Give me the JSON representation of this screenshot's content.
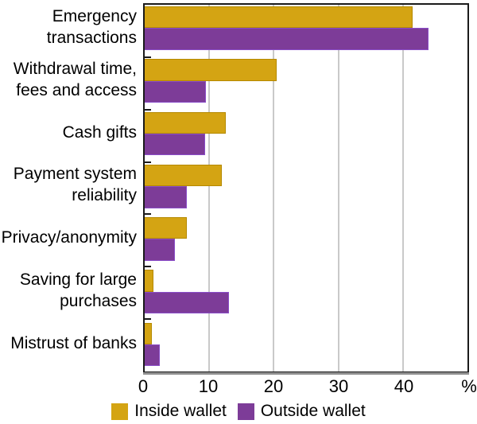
{
  "chart_data": {
    "type": "bar",
    "orientation": "horizontal",
    "title": "",
    "categories": [
      "Emergency\ntransactions",
      "Withdrawal time,\nfees and access",
      "Cash gifts",
      "Payment system\nreliability",
      "Privacy/anonymity",
      "Saving for large\npurchases",
      "Mistrust of banks"
    ],
    "series": [
      {
        "name": "Inside wallet",
        "color": "#d4a413",
        "values": [
          41.5,
          20.5,
          12.5,
          12.0,
          6.5,
          1.3,
          1.1
        ]
      },
      {
        "name": "Outside wallet",
        "color": "#7d3c98",
        "values": [
          44.0,
          9.5,
          9.3,
          6.5,
          4.7,
          13.0,
          2.3
        ]
      }
    ],
    "x_ticks": [
      "0",
      "10",
      "20",
      "30",
      "40"
    ],
    "x_unit": "%",
    "xlim": [
      0,
      50
    ],
    "grid": "vertical",
    "legend_position": "bottom-center"
  },
  "colors": {
    "inside_wallet": "#d4a413",
    "outside_wallet": "#7d3c98",
    "gridline": "#c9c9c9",
    "axis": "#1a1a1a"
  }
}
